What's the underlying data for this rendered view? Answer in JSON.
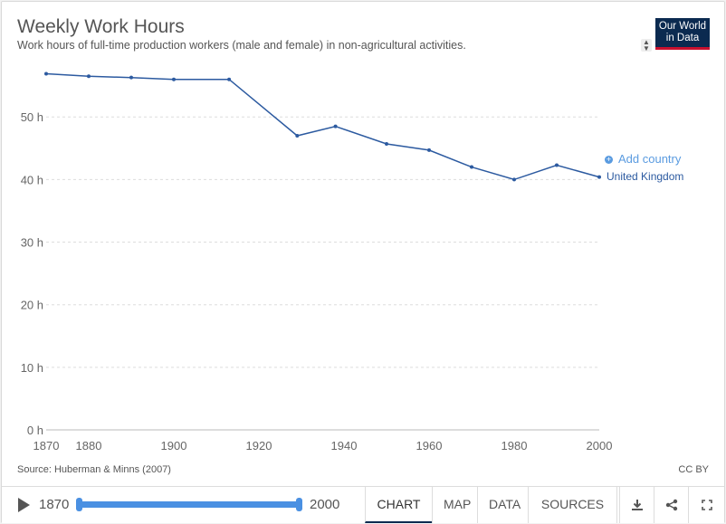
{
  "header": {
    "title": "Weekly Work Hours",
    "subtitle": "Work hours of full-time production workers (male and female) in non-agricultural activities.",
    "logo_line1": "Our World",
    "logo_line2": "in Data"
  },
  "legend": {
    "add_country": "Add country",
    "series_label": "United Kingdom"
  },
  "footer_info": {
    "source": "Source: Huberman & Minns (2007)",
    "license": "CC BY"
  },
  "controls": {
    "start_year": "1870",
    "end_year": "2000",
    "tabs": [
      "CHART",
      "MAP",
      "DATA",
      "SOURCES"
    ],
    "active_tab": "CHART",
    "icons": [
      "download-icon",
      "share-icon",
      "fullscreen-icon"
    ]
  },
  "colors": {
    "line": "#2c5aa0",
    "grid": "#dddddd",
    "accent": "#4a90e2",
    "brand": "#0b2a50",
    "brand_red": "#c8102e"
  },
  "chart_data": {
    "type": "line",
    "title": "Weekly Work Hours",
    "subtitle": "Work hours of full-time production workers (male and female) in non-agricultural activities.",
    "xlim": [
      1870,
      2000
    ],
    "ylim": [
      0,
      59
    ],
    "x_ticks": [
      1870,
      1880,
      1900,
      1920,
      1940,
      1960,
      1980,
      2000
    ],
    "y_ticks": [
      0,
      10,
      20,
      30,
      40,
      50
    ],
    "y_tick_labels": [
      "0 h",
      "10 h",
      "20 h",
      "30 h",
      "40 h",
      "50 h"
    ],
    "grid": "horizontal dashed",
    "series": [
      {
        "name": "United Kingdom",
        "x": [
          1870,
          1880,
          1890,
          1900,
          1913,
          1929,
          1938,
          1950,
          1960,
          1970,
          1980,
          1990,
          2000
        ],
        "y": [
          56.9,
          56.5,
          56.3,
          56.0,
          56.0,
          47.0,
          48.5,
          45.7,
          44.7,
          42.0,
          40.0,
          42.3,
          40.4
        ]
      }
    ]
  }
}
